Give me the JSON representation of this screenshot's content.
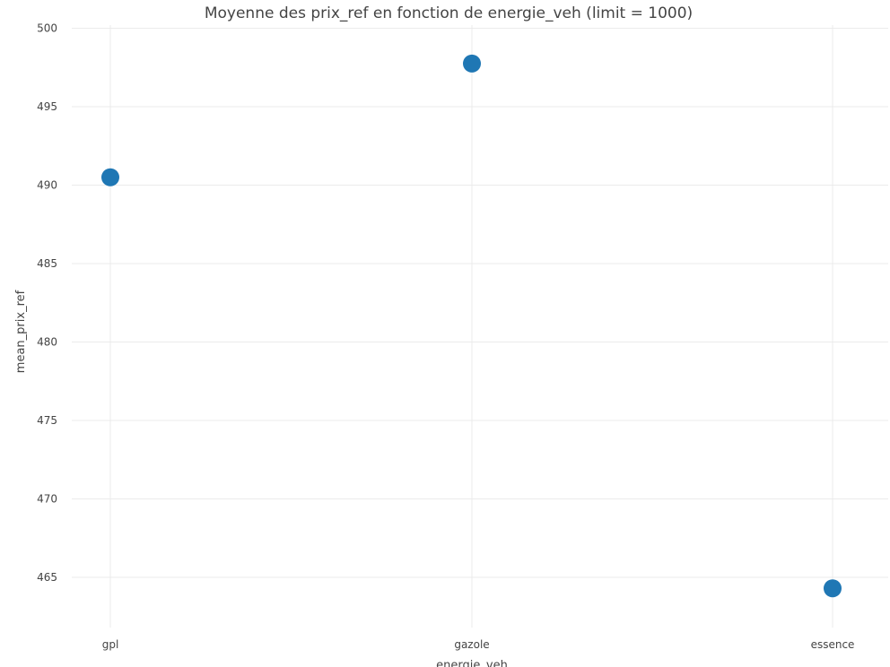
{
  "chart_data": {
    "type": "scatter",
    "title": "Moyenne des prix_ref en fonction de energie_veh (limit = 1000)",
    "xlabel": "energie_veh",
    "ylabel": "mean_prix_ref",
    "categories": [
      "gpl",
      "gazole",
      "essence"
    ],
    "values": [
      490.5,
      497.75,
      464.3
    ],
    "ylim": [
      461.8,
      500.2
    ],
    "yticks": [
      465,
      470,
      475,
      480,
      485,
      490,
      495,
      500
    ],
    "grid": true,
    "legend": "none",
    "marker_color": "#1f77b4"
  }
}
